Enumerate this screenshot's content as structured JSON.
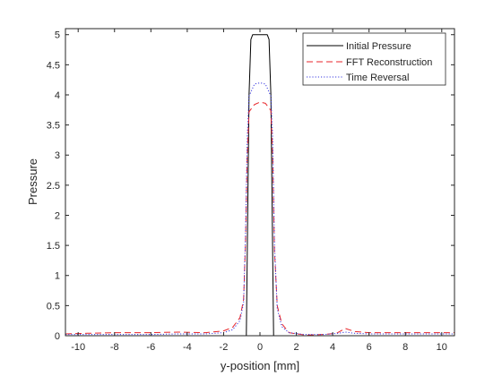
{
  "chart_data": {
    "type": "line",
    "title": "",
    "xlabel": "y-position [mm]",
    "ylabel": "Pressure",
    "xlim": [
      -10.7,
      10.7
    ],
    "ylim": [
      0,
      5.1
    ],
    "xticks": [
      -10,
      -8,
      -6,
      -4,
      -2,
      0,
      2,
      4,
      6,
      8,
      10
    ],
    "yticks": [
      0,
      0.5,
      1,
      1.5,
      2,
      2.5,
      3,
      3.5,
      4,
      4.5,
      5
    ],
    "xtick_labels": [
      "-10",
      "-8",
      "-6",
      "-4",
      "-2",
      "0",
      "2",
      "4",
      "6",
      "8",
      "10"
    ],
    "ytick_labels": [
      "0",
      "0.5",
      "1",
      "1.5",
      "2",
      "2.5",
      "3",
      "3.5",
      "4",
      "4.5",
      "5"
    ],
    "grid": false,
    "legend_position": "top-right",
    "series": [
      {
        "name": "Initial Pressure",
        "color": "#000000",
        "dash": "solid",
        "points": [
          [
            -10.7,
            0
          ],
          [
            -0.75,
            0
          ],
          [
            -0.6,
            4.0
          ],
          [
            -0.5,
            4.92
          ],
          [
            -0.4,
            5.0
          ],
          [
            0.4,
            5.0
          ],
          [
            0.5,
            4.92
          ],
          [
            0.6,
            4.0
          ],
          [
            0.75,
            0
          ],
          [
            10.7,
            0
          ]
        ]
      },
      {
        "name": "FFT Reconstruction",
        "color": "#e8262a",
        "dash": "dashed",
        "points": [
          [
            -10.7,
            0.03
          ],
          [
            -9.5,
            0.04
          ],
          [
            -8,
            0.05
          ],
          [
            -6,
            0.05
          ],
          [
            -4.5,
            0.06
          ],
          [
            -3,
            0.05
          ],
          [
            -2,
            0.08
          ],
          [
            -1.5,
            0.14
          ],
          [
            -1.1,
            0.3
          ],
          [
            -0.9,
            0.6
          ],
          [
            -0.8,
            1.5
          ],
          [
            -0.7,
            3.0
          ],
          [
            -0.6,
            3.72
          ],
          [
            -0.3,
            3.84
          ],
          [
            0,
            3.88
          ],
          [
            0.3,
            3.86
          ],
          [
            0.6,
            3.74
          ],
          [
            0.7,
            3.0
          ],
          [
            0.8,
            1.4
          ],
          [
            0.95,
            0.5
          ],
          [
            1.2,
            0.2
          ],
          [
            1.6,
            0.05
          ],
          [
            2.5,
            0.01
          ],
          [
            3.5,
            0.02
          ],
          [
            4.2,
            0.04
          ],
          [
            4.7,
            0.12
          ],
          [
            5.2,
            0.07
          ],
          [
            6,
            0.05
          ],
          [
            8,
            0.05
          ],
          [
            10,
            0.05
          ],
          [
            10.7,
            0.05
          ]
        ]
      },
      {
        "name": "Time Reversal",
        "color": "#3a3ae0",
        "dash": "dotted",
        "points": [
          [
            -10.7,
            0.02
          ],
          [
            -8,
            0.02
          ],
          [
            -6,
            0.02
          ],
          [
            -4.5,
            0.03
          ],
          [
            -3,
            0.03
          ],
          [
            -2,
            0.05
          ],
          [
            -1.5,
            0.1
          ],
          [
            -1.1,
            0.25
          ],
          [
            -0.9,
            0.55
          ],
          [
            -0.8,
            1.6
          ],
          [
            -0.7,
            3.3
          ],
          [
            -0.6,
            3.98
          ],
          [
            -0.3,
            4.18
          ],
          [
            0,
            4.2
          ],
          [
            0.3,
            4.18
          ],
          [
            0.6,
            3.98
          ],
          [
            0.7,
            3.3
          ],
          [
            0.8,
            1.5
          ],
          [
            0.95,
            0.45
          ],
          [
            1.2,
            0.15
          ],
          [
            1.6,
            0.05
          ],
          [
            2.5,
            0.02
          ],
          [
            3.5,
            0.02
          ],
          [
            4.3,
            0.04
          ],
          [
            4.7,
            0.06
          ],
          [
            5.2,
            0.04
          ],
          [
            6,
            0.03
          ],
          [
            8,
            0.03
          ],
          [
            10,
            0.03
          ],
          [
            10.7,
            0.03
          ]
        ]
      }
    ]
  }
}
